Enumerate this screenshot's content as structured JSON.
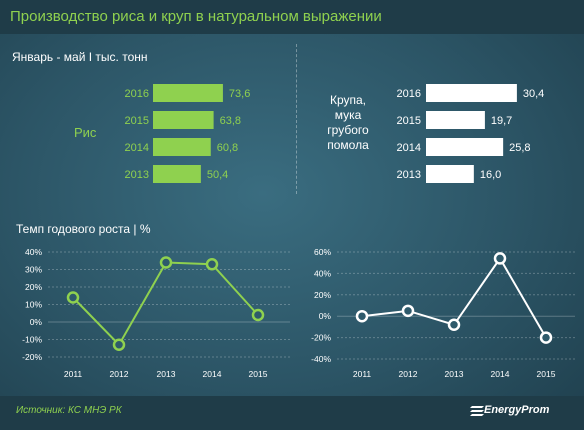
{
  "title": "Производство риса и круп в натуральном выражении",
  "subtitle": "Январь - май I тыс. тонн",
  "bar_left_label": "Рис",
  "bar_right_label_lines": [
    "Крупа,",
    "мука",
    "грубого",
    "помола"
  ],
  "line_title": "Темп годового роста  | %",
  "source": "Источник: КС МНЭ РК",
  "logo_text": "EnergyProm",
  "colors": {
    "green": "#8fd14f",
    "white": "#ffffff",
    "title_bg": "#1f3c48"
  },
  "chart_data": [
    {
      "type": "bar",
      "orientation": "horizontal",
      "categories": [
        "2016",
        "2015",
        "2014",
        "2013"
      ],
      "values": [
        73.6,
        63.8,
        60.8,
        50.4
      ],
      "value_labels": [
        "73,6",
        "63,8",
        "60,8",
        "50,4"
      ],
      "color": "#8fd14f"
    },
    {
      "type": "bar",
      "orientation": "horizontal",
      "categories": [
        "2016",
        "2015",
        "2014",
        "2013"
      ],
      "values": [
        30.4,
        19.7,
        25.8,
        16.0
      ],
      "value_labels": [
        "30,4",
        "19,7",
        "25,8",
        "16,0"
      ],
      "color": "#ffffff"
    },
    {
      "type": "line",
      "x": [
        "2011",
        "2012",
        "2013",
        "2014",
        "2015"
      ],
      "values": [
        14,
        -13,
        34,
        33,
        4
      ],
      "ylim": [
        -20,
        40
      ],
      "yticks": [
        "40%",
        "30%",
        "20%",
        "10%",
        "0%",
        "-10%",
        "-20%"
      ],
      "ytick_values": [
        40,
        30,
        20,
        10,
        0,
        -10,
        -20
      ],
      "color": "#8fd14f"
    },
    {
      "type": "line",
      "x": [
        "2011",
        "2012",
        "2013",
        "2014",
        "2015"
      ],
      "values": [
        0,
        5,
        -8,
        54,
        -20
      ],
      "ylim": [
        -40,
        60
      ],
      "yticks": [
        "60%",
        "40%",
        "20%",
        "0%",
        "-20%",
        "-40%"
      ],
      "ytick_values": [
        60,
        40,
        20,
        0,
        -20,
        -40
      ],
      "color": "#ffffff"
    }
  ]
}
